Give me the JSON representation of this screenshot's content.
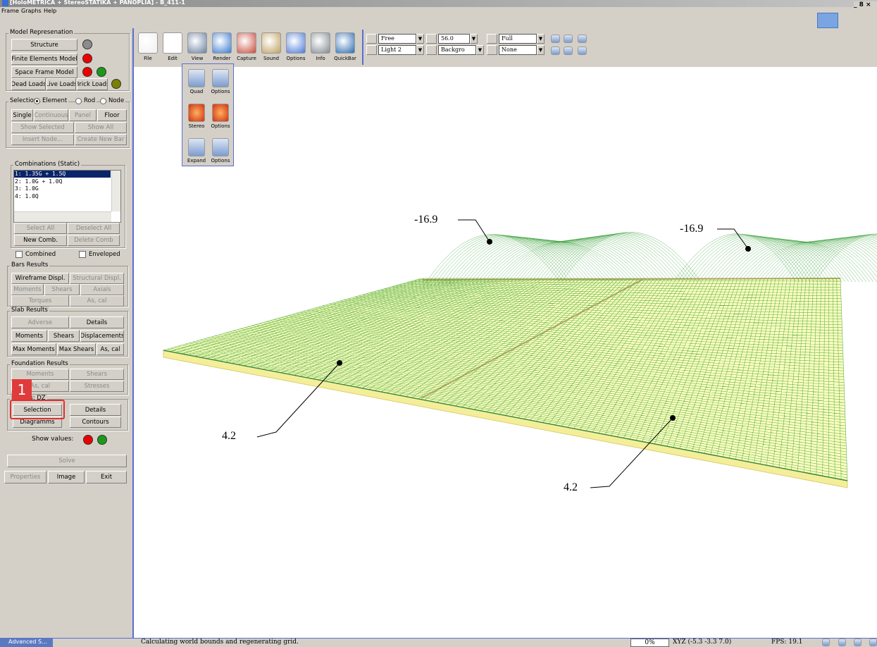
{
  "window": {
    "title": "[HoloMETRICA + StereoSTATIKA + PANOPLIA] - B_411-1",
    "menu": [
      "Frame",
      "Graphs",
      "Help"
    ]
  },
  "left_panel": {
    "model": {
      "legend": "Model Represenation",
      "buttons": [
        "Structure",
        "Finite Elements Model",
        "Space Frame Model",
        "Dead Loads",
        "Live Loads",
        "Brick Loads"
      ]
    },
    "selection": {
      "legend": "Selection",
      "options": [
        "Element",
        "Rod",
        "Node"
      ],
      "buttons": [
        "Single",
        "Continuous",
        "Panel",
        "Floor",
        "Show Selected",
        "Show All",
        "Insert Node...",
        "Create New Bar"
      ]
    },
    "combinations": {
      "legend": "Combinations (Static)",
      "items": [
        "1: 1.35G + 1.5Q",
        "2: 1.0G + 1.0Q",
        "3: 1.0G",
        "4: 1.0Q"
      ],
      "buttons": [
        "Select All",
        "Deselect All",
        "New Comb.",
        "Delete Comb"
      ],
      "checkboxes": [
        "Combined",
        "Enveloped"
      ]
    },
    "bars": {
      "legend": "Bars Results",
      "buttons": [
        "Wireframe Displ.",
        "Structural Displ.",
        "Moments",
        "Shears",
        "Axials",
        "Torques",
        "As, cal"
      ]
    },
    "slab": {
      "legend": "Slab Results",
      "buttons": [
        "Adverse",
        "Details",
        "Moments",
        "Shears",
        "Displacements",
        "Max Moments",
        "Max Shears",
        "As, cal"
      ]
    },
    "foundation": {
      "legend": "Foundation Results",
      "buttons": [
        "Moments",
        "Shears",
        "As, cal",
        "Stresses"
      ]
    },
    "results": {
      "legend": "Results: DZ",
      "buttons": [
        "Selection",
        "Details",
        "Diagramms",
        "Contours"
      ],
      "badge": "1"
    },
    "show_values": "Show values:",
    "bottom_buttons": [
      "Solve",
      "Properties",
      "Image",
      "Exit"
    ]
  },
  "toolbar": {
    "buttons": [
      "File",
      "Edit",
      "View",
      "Render",
      "Capture",
      "Sound",
      "Options",
      "Info",
      "QuickBar"
    ],
    "dropdowns": [
      "Free",
      "56.0",
      "Full",
      "Light 2",
      "Backgro",
      "None"
    ]
  },
  "view_menu": [
    "Quad",
    "Options",
    "Stereo",
    "Options",
    "Expand",
    "Options"
  ],
  "viewport": {
    "annotations": [
      "-16.9",
      "-16.9",
      "4.2",
      "4.2"
    ]
  },
  "status_bar": {
    "taskbar": "Advanced S...",
    "message": "Calculating world bounds and regenerating grid.",
    "progress": "0%",
    "coords": "XYZ (-5.3 -3.3 7.0)",
    "fps": "FPS: 19.1"
  }
}
